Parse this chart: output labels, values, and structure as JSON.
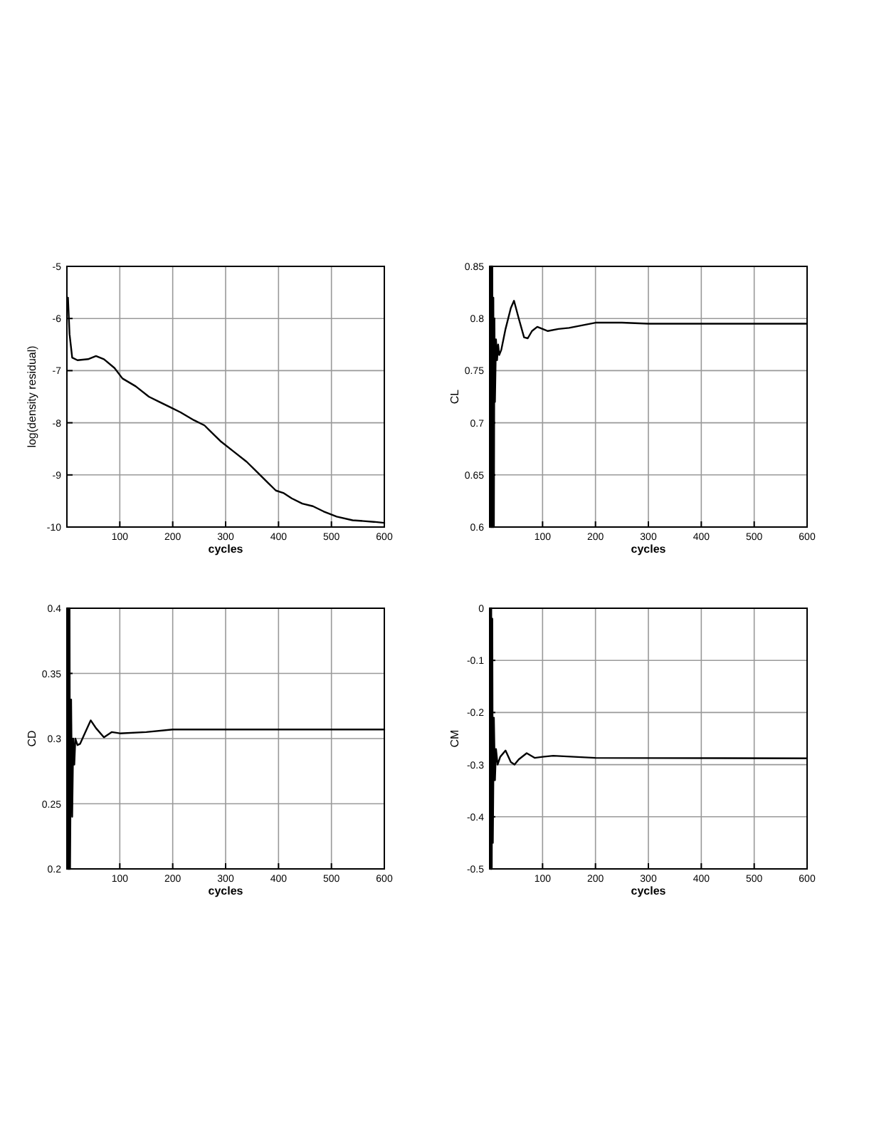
{
  "chart_data": [
    {
      "type": "line",
      "xlabel": "cycles",
      "ylabel": "log(density residual)",
      "xlim": [
        0,
        600
      ],
      "ylim": [
        -10,
        -5
      ],
      "xticks": [
        100,
        200,
        300,
        400,
        500,
        600
      ],
      "yticks": [
        -10,
        -9,
        -8,
        -7,
        -6,
        -5
      ],
      "grid": true,
      "series": [
        {
          "color": "#000000",
          "x": [
            2,
            5,
            10,
            20,
            40,
            55,
            70,
            90,
            105,
            130,
            155,
            175,
            195,
            215,
            240,
            260,
            270,
            290,
            315,
            340,
            360,
            380,
            395,
            410,
            425,
            445,
            465,
            485,
            510,
            540,
            580,
            600
          ],
          "values": [
            -5.6,
            -6.3,
            -6.75,
            -6.8,
            -6.78,
            -6.72,
            -6.78,
            -6.95,
            -7.15,
            -7.3,
            -7.5,
            -7.6,
            -7.7,
            -7.8,
            -7.95,
            -8.05,
            -8.15,
            -8.35,
            -8.55,
            -8.75,
            -8.95,
            -9.15,
            -9.3,
            -9.35,
            -9.45,
            -9.55,
            -9.6,
            -9.7,
            -9.8,
            -9.87,
            -9.9,
            -9.92
          ]
        }
      ]
    },
    {
      "type": "line",
      "xlabel": "cycles",
      "ylabel": "CL",
      "xlim": [
        0,
        600
      ],
      "ylim": [
        0.6,
        0.85
      ],
      "xticks": [
        100,
        200,
        300,
        400,
        500,
        600
      ],
      "yticks": [
        0.6,
        0.65,
        0.7,
        0.75,
        0.8,
        0.85
      ],
      "grid": true,
      "series": [
        {
          "color": "#000000",
          "x": [
            1,
            2,
            3,
            4,
            5,
            6,
            7,
            8,
            9,
            10,
            12,
            14,
            16,
            18,
            22,
            30,
            40,
            46,
            55,
            65,
            72,
            80,
            90,
            100,
            110,
            130,
            150,
            200,
            250,
            300,
            600
          ],
          "values": [
            0.85,
            0.6,
            0.85,
            0.6,
            0.85,
            0.6,
            0.82,
            0.6,
            0.8,
            0.72,
            0.78,
            0.76,
            0.775,
            0.765,
            0.77,
            0.79,
            0.81,
            0.817,
            0.8,
            0.782,
            0.781,
            0.788,
            0.792,
            0.79,
            0.788,
            0.79,
            0.791,
            0.796,
            0.796,
            0.795,
            0.795
          ]
        }
      ]
    },
    {
      "type": "line",
      "xlabel": "cycles",
      "ylabel": "CD",
      "xlim": [
        0,
        600
      ],
      "ylim": [
        0.2,
        0.4
      ],
      "xticks": [
        100,
        200,
        300,
        400,
        500,
        600
      ],
      "yticks": [
        0.2,
        0.25,
        0.3,
        0.35,
        0.4
      ],
      "grid": true,
      "series": [
        {
          "color": "#000000",
          "x": [
            1,
            2,
            3,
            4,
            5,
            6,
            8,
            10,
            12,
            14,
            16,
            20,
            25,
            35,
            45,
            55,
            70,
            85,
            100,
            150,
            200,
            600
          ],
          "values": [
            0.4,
            0.2,
            0.4,
            0.2,
            0.4,
            0.2,
            0.33,
            0.24,
            0.3,
            0.28,
            0.3,
            0.295,
            0.296,
            0.305,
            0.314,
            0.308,
            0.301,
            0.305,
            0.304,
            0.305,
            0.307,
            0.307
          ]
        }
      ]
    },
    {
      "type": "line",
      "xlabel": "cycles",
      "ylabel": "CM",
      "xlim": [
        0,
        600
      ],
      "ylim": [
        -0.5,
        0
      ],
      "xticks": [
        100,
        200,
        300,
        400,
        500,
        600
      ],
      "yticks": [
        -0.5,
        -0.4,
        -0.3,
        -0.2,
        -0.1,
        0
      ],
      "grid": true,
      "series": [
        {
          "color": "#000000",
          "x": [
            1,
            2,
            3,
            4,
            5,
            6,
            8,
            10,
            12,
            15,
            20,
            30,
            40,
            47,
            55,
            70,
            85,
            100,
            120,
            200,
            600
          ],
          "values": [
            0,
            -0.5,
            0,
            -0.5,
            -0.02,
            -0.45,
            -0.21,
            -0.33,
            -0.27,
            -0.3,
            -0.285,
            -0.273,
            -0.295,
            -0.3,
            -0.29,
            -0.278,
            -0.287,
            -0.285,
            -0.283,
            -0.287,
            -0.288
          ]
        }
      ]
    }
  ]
}
